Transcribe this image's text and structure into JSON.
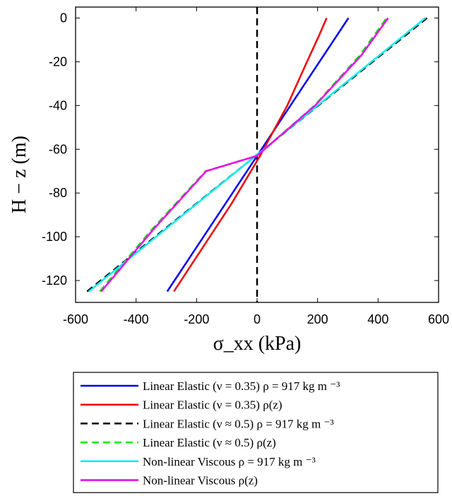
{
  "chart_data": {
    "type": "line",
    "xlabel": "σ_xx (kPa)",
    "ylabel": "H − z (m)",
    "xlim": [
      -600,
      600
    ],
    "ylim": [
      -130,
      5
    ],
    "xticks": [
      -600,
      -400,
      -200,
      0,
      200,
      400,
      600
    ],
    "yticks": [
      0,
      -20,
      -40,
      -60,
      -80,
      -100,
      -120
    ],
    "grid": false,
    "legend_position": "bottom, outside plot",
    "reference_line": {
      "x": 0,
      "style": "dashed",
      "color": "#000000"
    },
    "series": [
      {
        "name": "Linear Elastic (ν = 0.35) ρ = 917 kg m ⁻³",
        "color": "#0000ee",
        "style": "solid",
        "x": [
          -297,
          302
        ],
        "y": [
          -125,
          0
        ]
      },
      {
        "name": "Linear Elastic (ν = 0.35) ρ(z)",
        "color": "#ee0000",
        "style": "solid",
        "x": [
          -275,
          -180,
          -85,
          10,
          100,
          165,
          205,
          230
        ],
        "y": [
          -125,
          -105,
          -85,
          -63,
          -40,
          -20,
          -8,
          0
        ]
      },
      {
        "name": "Linear Elastic (ν ≈ 0.5) ρ = 917 kg m ⁻³",
        "color": "#000000",
        "style": "dashed",
        "x": [
          -562,
          562
        ],
        "y": [
          -125,
          0
        ]
      },
      {
        "name": "Linear Elastic (ν ≈ 0.5) ρ(z)",
        "color": "#00ee00",
        "style": "dashed",
        "x": [
          -520,
          -350,
          -170,
          0,
          190,
          340,
          428
        ],
        "y": [
          -125,
          -97,
          -70,
          -63,
          -40,
          -17,
          0
        ]
      },
      {
        "name": "Non-linear Viscous ρ = 917 kg m ⁻³",
        "color": "#00eeee",
        "style": "solid",
        "x": [
          -556,
          556
        ],
        "y": [
          -125,
          0
        ]
      },
      {
        "name": "Non-linear Viscous ρ(z)",
        "color": "#ee00ee",
        "style": "solid",
        "x": [
          -515,
          -345,
          -168,
          0,
          192,
          345,
          433
        ],
        "y": [
          -125,
          -97,
          -70,
          -63,
          -40,
          -17,
          0
        ]
      }
    ]
  }
}
